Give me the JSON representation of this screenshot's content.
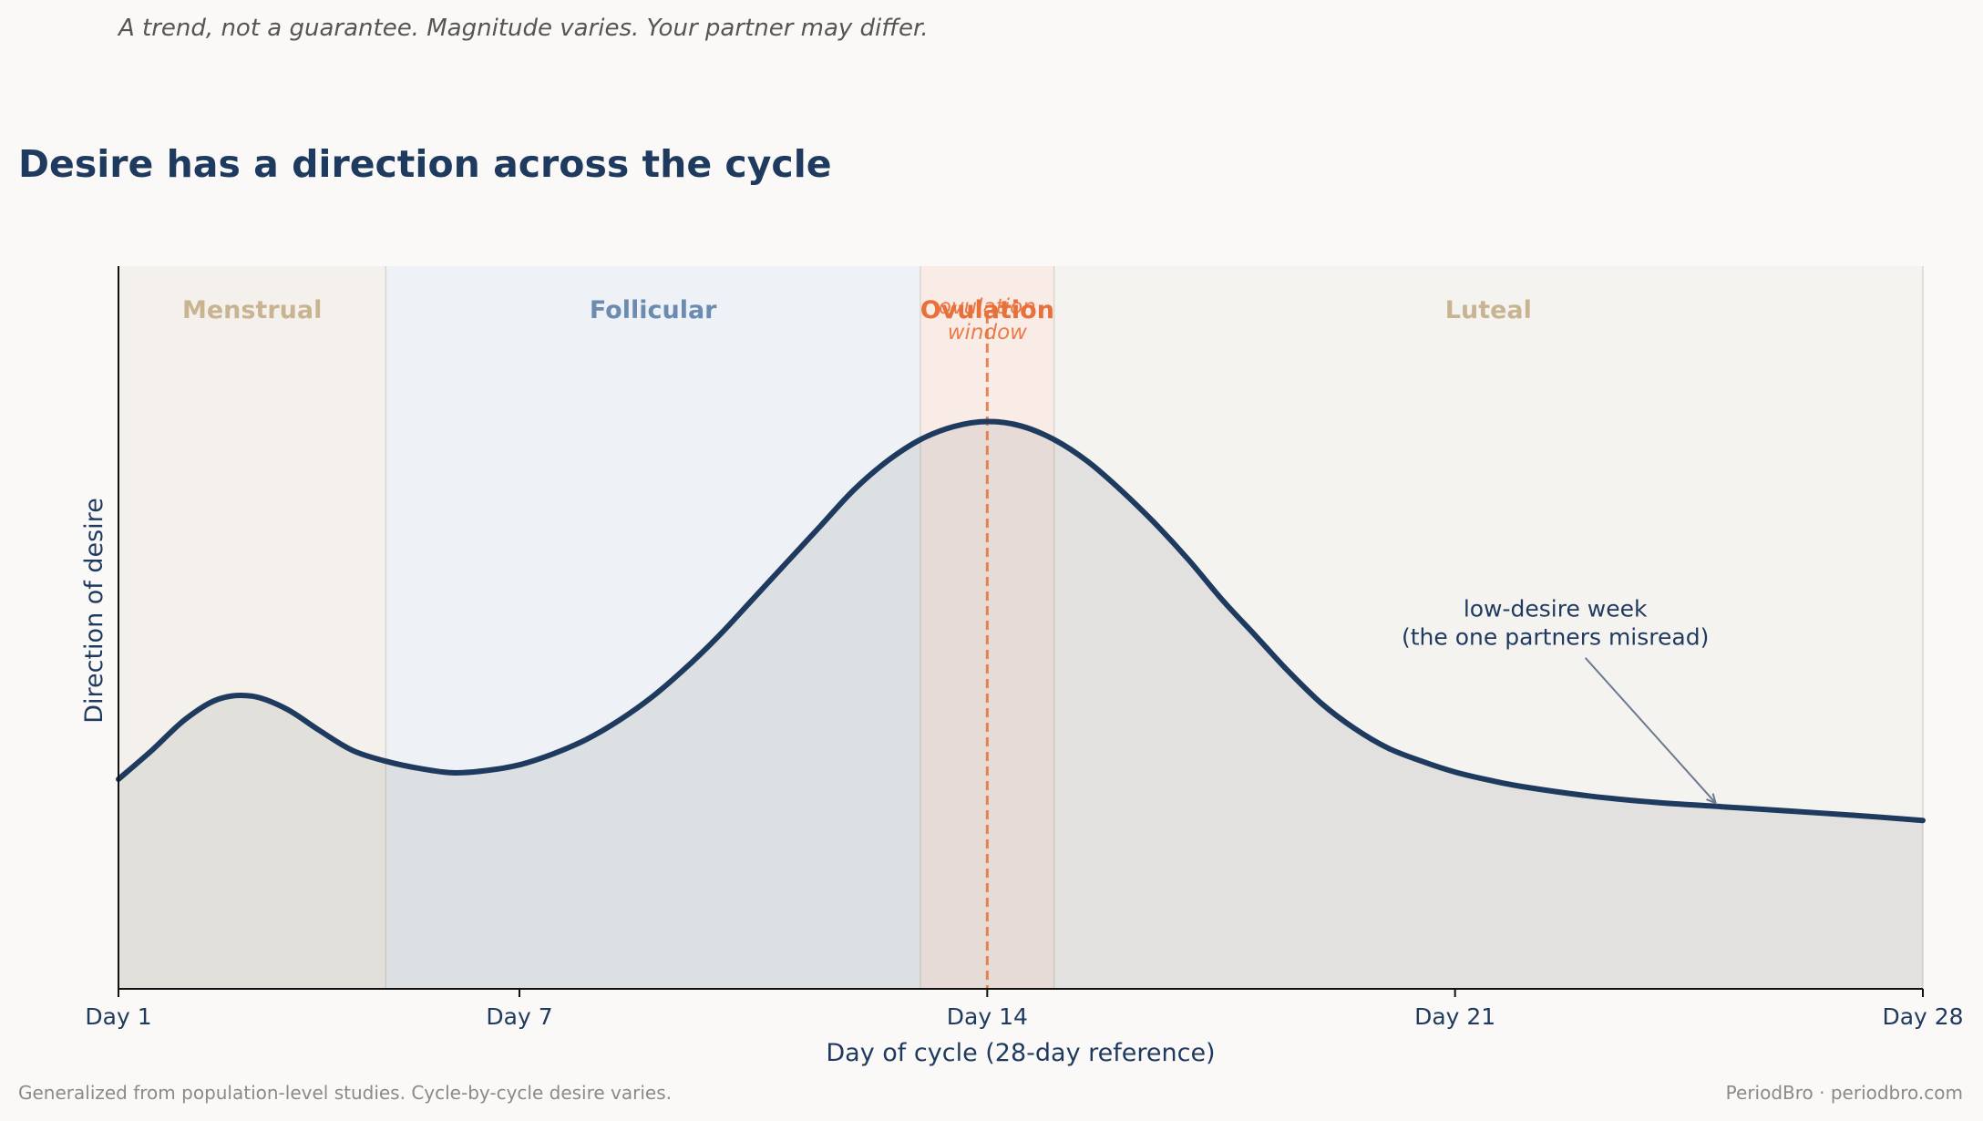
{
  "header": {
    "subtitle": "A trend, not a guarantee. Magnitude varies. Your partner may differ.",
    "title": "Desire has a direction across the cycle"
  },
  "footer": {
    "left": "Generalized from population-level studies. Cycle-by-cycle desire varies.",
    "right": "PeriodBro · periodbro.com"
  },
  "chart_data": {
    "type": "area",
    "xlabel": "Day of cycle (28-day reference)",
    "ylabel": "Direction of desire",
    "xlim": [
      1,
      28
    ],
    "ylim": [
      0,
      1
    ],
    "x_ticks": [
      {
        "value": 1,
        "label": "Day 1"
      },
      {
        "value": 7,
        "label": "Day 7"
      },
      {
        "value": 14,
        "label": "Day 14"
      },
      {
        "value": 21,
        "label": "Day 21"
      },
      {
        "value": 28,
        "label": "Day 28"
      }
    ],
    "phases": [
      {
        "name": "Menstrual",
        "start": 1,
        "end": 5,
        "color": "#f4f1ec",
        "label_color": "#c9b491"
      },
      {
        "name": "Follicular",
        "start": 5,
        "end": 13,
        "color": "#eef1f5",
        "label_color": "#6b8bb0"
      },
      {
        "name": "Ovulation",
        "start": 13,
        "end": 15,
        "color": "#f9ece6",
        "label_color": "#e8703a"
      },
      {
        "name": "Luteal",
        "start": 15,
        "end": 28,
        "color": "#f5f3f0",
        "label_color": "#c9b491"
      }
    ],
    "ovulation_marker": {
      "x": 14,
      "label": "ovulation\nwindow",
      "color": "#e8703a"
    },
    "series": [
      {
        "color": "#1f3a5f",
        "x": [
          1,
          1.5,
          2,
          2.5,
          3,
          3.5,
          4,
          4.5,
          5,
          5.5,
          6,
          6.5,
          7,
          7.5,
          8,
          8.5,
          9,
          9.5,
          10,
          10.5,
          11,
          11.5,
          12,
          12.5,
          13,
          13.5,
          14,
          14.5,
          15,
          15.5,
          16,
          16.5,
          17,
          17.5,
          18,
          18.5,
          19,
          19.5,
          20,
          20.5,
          21,
          21.5,
          22,
          23,
          24,
          25,
          26,
          27,
          28
        ],
        "y": [
          0.29,
          0.33,
          0.373,
          0.401,
          0.405,
          0.388,
          0.358,
          0.33,
          0.315,
          0.305,
          0.299,
          0.302,
          0.31,
          0.325,
          0.345,
          0.372,
          0.405,
          0.445,
          0.49,
          0.54,
          0.59,
          0.64,
          0.69,
          0.73,
          0.76,
          0.778,
          0.785,
          0.779,
          0.76,
          0.73,
          0.69,
          0.645,
          0.595,
          0.54,
          0.49,
          0.44,
          0.395,
          0.36,
          0.333,
          0.315,
          0.3,
          0.289,
          0.28,
          0.267,
          0.258,
          0.252,
          0.246,
          0.24,
          0.233
        ]
      }
    ],
    "annotation": {
      "text": "low-desire week\n(the one partners misread)",
      "text_x": 22.5,
      "text_y": 0.5,
      "arrow_from": [
        22.95,
        0.458
      ],
      "arrow_to": [
        24.9,
        0.257
      ]
    }
  }
}
